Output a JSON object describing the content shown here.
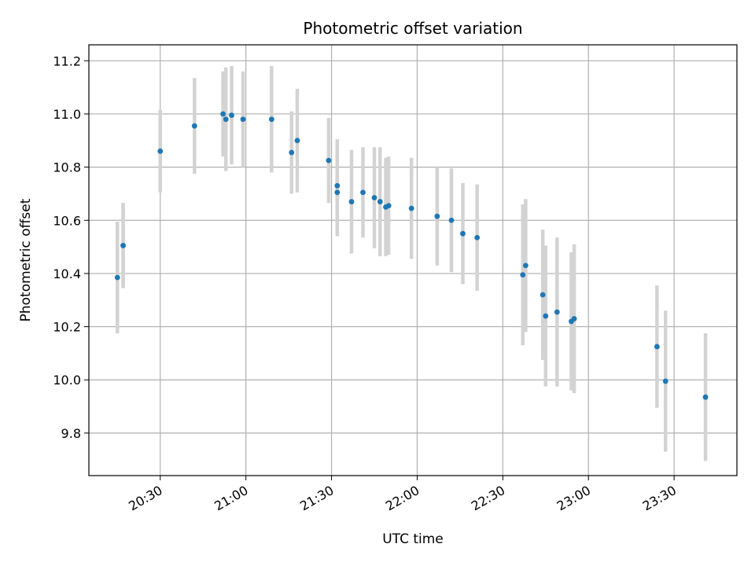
{
  "chart_data": {
    "type": "scatter",
    "title": "Photometric offset variation",
    "xlabel": "UTC time",
    "ylabel": "Photometric offset",
    "x_ticks": [
      "20:30",
      "21:00",
      "21:30",
      "22:00",
      "22:30",
      "23:00",
      "23:30"
    ],
    "y_ticks": [
      "9.8",
      "10.0",
      "10.2",
      "10.4",
      "10.6",
      "10.8",
      "11.0",
      "11.2"
    ],
    "xlim": [
      "20:05",
      "23:52"
    ],
    "ylim": [
      9.64,
      11.26
    ],
    "grid": true,
    "marker_color": "#1f77b4",
    "errorbar_color": "#d3d3d3",
    "points": [
      {
        "x": "20:15",
        "y": 10.385,
        "err": 0.21
      },
      {
        "x": "20:17",
        "y": 10.505,
        "err": 0.16
      },
      {
        "x": "20:17",
        "y": 10.505,
        "err": 0.16
      },
      {
        "x": "20:30",
        "y": 10.86,
        "err": 0.155
      },
      {
        "x": "20:42",
        "y": 10.955,
        "err": 0.18
      },
      {
        "x": "20:52",
        "y": 11.0,
        "err": 0.16
      },
      {
        "x": "20:53",
        "y": 10.98,
        "err": 0.195
      },
      {
        "x": "20:55",
        "y": 10.995,
        "err": 0.185
      },
      {
        "x": "20:59",
        "y": 10.98,
        "err": 0.18
      },
      {
        "x": "21:09",
        "y": 10.98,
        "err": 0.2
      },
      {
        "x": "21:16",
        "y": 10.855,
        "err": 0.155
      },
      {
        "x": "21:18",
        "y": 10.9,
        "err": 0.195
      },
      {
        "x": "21:29",
        "y": 10.825,
        "err": 0.16
      },
      {
        "x": "21:32",
        "y": 10.705,
        "err": 0.165
      },
      {
        "x": "21:32",
        "y": 10.73,
        "err": 0.175
      },
      {
        "x": "21:37",
        "y": 10.67,
        "err": 0.195
      },
      {
        "x": "21:41",
        "y": 10.705,
        "err": 0.17
      },
      {
        "x": "21:45",
        "y": 10.685,
        "err": 0.19
      },
      {
        "x": "21:47",
        "y": 10.67,
        "err": 0.205
      },
      {
        "x": "21:49",
        "y": 10.65,
        "err": 0.185
      },
      {
        "x": "21:50",
        "y": 10.655,
        "err": 0.185
      },
      {
        "x": "21:58",
        "y": 10.645,
        "err": 0.19
      },
      {
        "x": "22:07",
        "y": 10.615,
        "err": 0.185
      },
      {
        "x": "22:12",
        "y": 10.6,
        "err": 0.195
      },
      {
        "x": "22:16",
        "y": 10.55,
        "err": 0.19
      },
      {
        "x": "22:21",
        "y": 10.535,
        "err": 0.2
      },
      {
        "x": "22:37",
        "y": 10.395,
        "err": 0.265
      },
      {
        "x": "22:38",
        "y": 10.43,
        "err": 0.25
      },
      {
        "x": "22:44",
        "y": 10.32,
        "err": 0.245
      },
      {
        "x": "22:45",
        "y": 10.24,
        "err": 0.265
      },
      {
        "x": "22:49",
        "y": 10.255,
        "err": 0.28
      },
      {
        "x": "22:54",
        "y": 10.22,
        "err": 0.26
      },
      {
        "x": "22:55",
        "y": 10.23,
        "err": 0.28
      },
      {
        "x": "23:24",
        "y": 10.125,
        "err": 0.23
      },
      {
        "x": "23:27",
        "y": 9.995,
        "err": 0.265
      },
      {
        "x": "23:41",
        "y": 9.935,
        "err": 0.24
      }
    ]
  }
}
